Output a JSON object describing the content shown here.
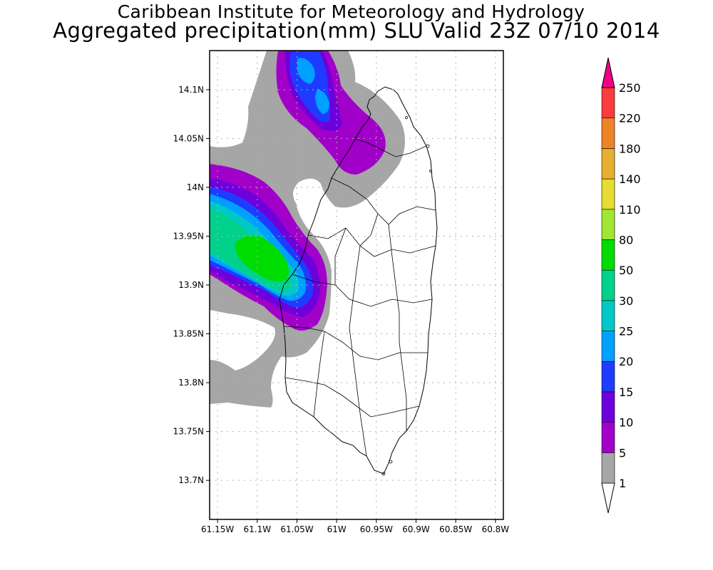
{
  "header": {
    "title": "Caribbean Institute for Meteorology and Hydrology",
    "subtitle": "Aggregated precipitation(mm) SLU Valid 23Z 07/10 2014"
  },
  "map": {
    "region": "Saint Lucia",
    "lon_range": [
      -61.16,
      -60.79
    ],
    "lat_range": [
      13.66,
      14.14
    ],
    "gridlines": true,
    "lat_ticks": [
      {
        "value": 14.1,
        "label": "14.1N"
      },
      {
        "value": 14.05,
        "label": "14.05N"
      },
      {
        "value": 14.0,
        "label": "14N"
      },
      {
        "value": 13.95,
        "label": "13.95N"
      },
      {
        "value": 13.9,
        "label": "13.9N"
      },
      {
        "value": 13.85,
        "label": "13.85N"
      },
      {
        "value": 13.8,
        "label": "13.8N"
      },
      {
        "value": 13.75,
        "label": "13.75N"
      },
      {
        "value": 13.7,
        "label": "13.7N"
      }
    ],
    "lon_ticks": [
      {
        "value": -61.15,
        "label": "61.15W"
      },
      {
        "value": -61.1,
        "label": "61.1W"
      },
      {
        "value": -61.05,
        "label": "61.05W"
      },
      {
        "value": -61.0,
        "label": "61W"
      },
      {
        "value": -60.95,
        "label": "60.95W"
      },
      {
        "value": -60.9,
        "label": "60.9W"
      },
      {
        "value": -60.85,
        "label": "60.85W"
      },
      {
        "value": -60.8,
        "label": "60.8W"
      }
    ]
  },
  "colorbar": {
    "levels": [
      {
        "label": "1",
        "color": "#ffffff"
      },
      {
        "label": "5",
        "color": "#a6a6a6"
      },
      {
        "label": "10",
        "color": "#a000c8"
      },
      {
        "label": "15",
        "color": "#6e00dc"
      },
      {
        "label": "20",
        "color": "#1e3cff"
      },
      {
        "label": "25",
        "color": "#00a0ff"
      },
      {
        "label": "30",
        "color": "#00c8c8"
      },
      {
        "label": "50",
        "color": "#00d28c"
      },
      {
        "label": "80",
        "color": "#00dc00"
      },
      {
        "label": "110",
        "color": "#a0e632"
      },
      {
        "label": "140",
        "color": "#e6dc32"
      },
      {
        "label": "180",
        "color": "#e6af2d"
      },
      {
        "label": "220",
        "color": "#f08228"
      },
      {
        "label": "250",
        "color": "#fa3c3c"
      }
    ],
    "top_color": "#f00082"
  }
}
